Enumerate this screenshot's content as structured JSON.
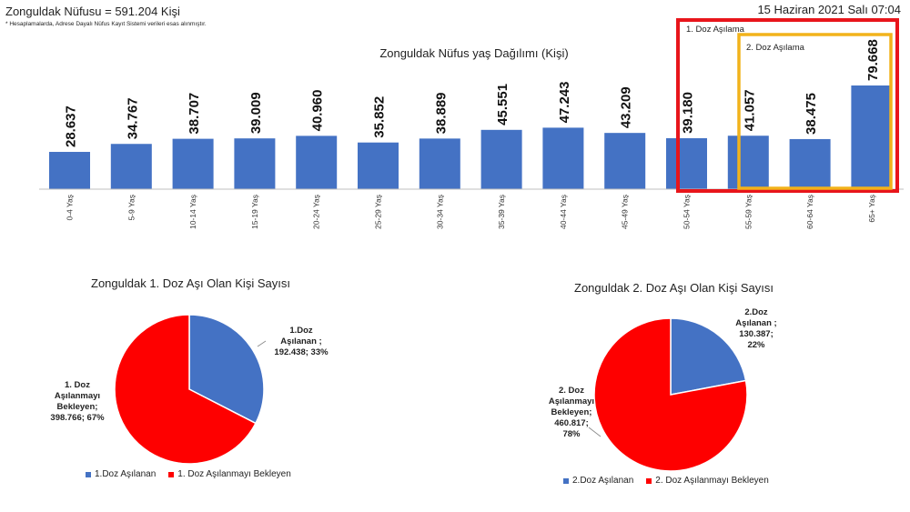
{
  "header": {
    "title": "Zonguldak Nüfusu = 591.204 Kişi",
    "note": "* Hesaplamalarda, Adrese Dayalı Nüfus Kayıt Sistemi verileri esas alınmıştır.",
    "date": "15 Haziran 2021 Salı 07:04"
  },
  "highlights": {
    "dose1_label": "1. Doz Aşılama",
    "dose2_label": "2. Doz Aşılama",
    "dose1_color": "#e8151b",
    "dose2_color": "#f2b31b"
  },
  "chart_data": [
    {
      "type": "bar",
      "title": "Zonguldak Nüfus yaş Dağılımı (Kişi)",
      "categories": [
        "0-4 Yaş",
        "5-9 Yaş",
        "10-14 Yaş",
        "15-19 Yaş",
        "20-24 Yaş",
        "25-29 Yaş",
        "30-34 Yaş",
        "35-39 Yaş",
        "40-44 Yaş",
        "45-49 Yaş",
        "50-54 Yaş",
        "55-59 Yaş",
        "60-64 Yaş",
        "65+ Yaş"
      ],
      "values": [
        28637,
        34767,
        38707,
        39009,
        40960,
        35852,
        38889,
        45551,
        47243,
        43209,
        39180,
        41057,
        38475,
        79668
      ],
      "value_labels": [
        "28.637",
        "34.767",
        "38.707",
        "39.009",
        "40.960",
        "35.852",
        "38.889",
        "45.551",
        "47.243",
        "43.209",
        "39.180",
        "41.057",
        "38.475",
        "79.668"
      ],
      "color": "#4472c4",
      "grid": false
    },
    {
      "type": "pie",
      "title": "Zonguldak 1. Doz Aşı Olan Kişi Sayısı",
      "slices": [
        {
          "name": "1.Doz Aşılanan",
          "value": 192438,
          "percent": 33,
          "color": "#4472c4",
          "label_lines": [
            "1.Doz",
            "Aşılanan ;",
            "192.438; 33%"
          ]
        },
        {
          "name": "1. Doz Aşılanmayı Bekleyen",
          "value": 398766,
          "percent": 67,
          "color": "#fe0000",
          "label_lines": [
            "1. Doz",
            "Aşılanmayı",
            "Bekleyen;",
            "398.766; 67%"
          ]
        }
      ]
    },
    {
      "type": "pie",
      "title": "Zonguldak 2. Doz Aşı Olan Kişi Sayısı",
      "slices": [
        {
          "name": "2.Doz Aşılanan",
          "value": 130387,
          "percent": 22,
          "color": "#4472c4",
          "label_lines": [
            "2.Doz",
            "Aşılanan ;",
            "130.387;",
            "22%"
          ]
        },
        {
          "name": "2. Doz Aşılanmayı Bekleyen",
          "value": 460817,
          "percent": 78,
          "color": "#fe0000",
          "label_lines": [
            "2. Doz",
            "Aşılanmayı",
            "Bekleyen;",
            "460.817;",
            "78%"
          ]
        }
      ]
    }
  ]
}
